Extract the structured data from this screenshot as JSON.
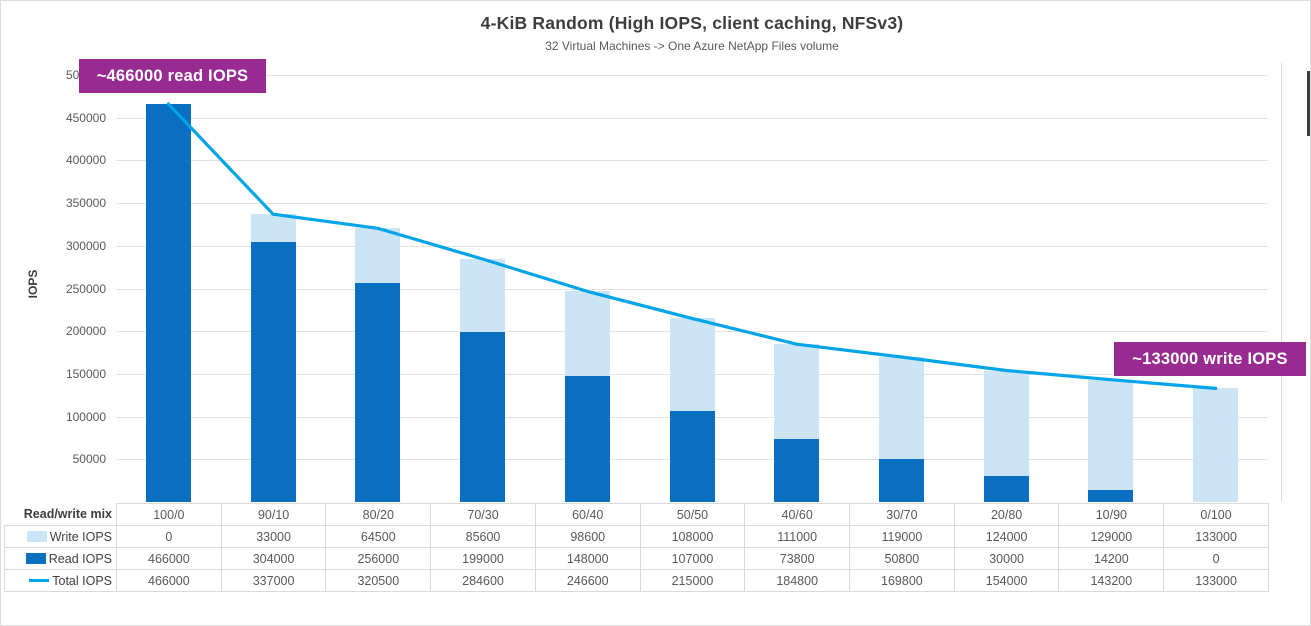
{
  "header": {
    "title": "4-KiB Random (High IOPS, client caching, NFSv3)",
    "subtitle": "32 Virtual Machines -> One Azure NetApp Files volume"
  },
  "chart_data": {
    "type": "bar",
    "subtype": "stacked-bar-with-line-overlay",
    "title": "4-KiB Random (High IOPS, client caching, NFSv3)",
    "subtitle": "32 Virtual Machines -> One Azure NetApp Files volume",
    "xlabel": "Read/write mix",
    "ylabel": "IOPS",
    "ylim": [
      0,
      500000
    ],
    "yticks": [
      50000,
      100000,
      150000,
      200000,
      250000,
      300000,
      350000,
      400000,
      450000,
      500000
    ],
    "grid": true,
    "legend_position": "table-left",
    "categories": [
      "100/0",
      "90/10",
      "80/20",
      "70/30",
      "60/40",
      "50/50",
      "40/60",
      "30/70",
      "20/80",
      "10/90",
      "0/100"
    ],
    "series": [
      {
        "name": "Write IOPS",
        "type": "bar",
        "stack_index": 1,
        "color": "#cbe4f6",
        "values": [
          0,
          33000,
          64500,
          85600,
          98600,
          108000,
          111000,
          119000,
          124000,
          129000,
          133000
        ]
      },
      {
        "name": "Read IOPS",
        "type": "bar",
        "stack_index": 0,
        "color": "#0b6fc1",
        "values": [
          466000,
          304000,
          256000,
          199000,
          148000,
          107000,
          73800,
          50800,
          30000,
          14200,
          0
        ]
      },
      {
        "name": "Total IOPS",
        "type": "line",
        "color": "#00a4e8",
        "values": [
          466000,
          337000,
          320500,
          284600,
          246600,
          215000,
          184800,
          169800,
          154000,
          143200,
          133000
        ]
      }
    ]
  },
  "annotations": [
    {
      "text": "~466000 read IOPS"
    },
    {
      "text": "~133000 write IOPS"
    }
  ],
  "colors": {
    "annotation_bg": "#982b92",
    "annotation_text": "#ffffff",
    "read_bar": "#0b6fc1",
    "write_bar": "#cbe4f6",
    "total_line": "#00a4e8",
    "gridline": "#e2e2e2",
    "table_border": "#d9d9d9",
    "title_text": "#3d3d3d",
    "tick_text": "#595959"
  }
}
